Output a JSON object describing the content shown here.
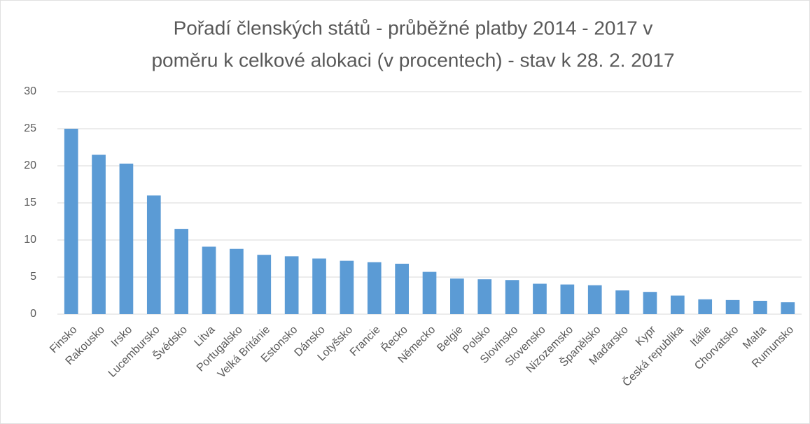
{
  "chart_data": {
    "type": "bar",
    "title": [
      "Pořadí členských států - průběžné platby 2014 - 2017 v",
      "poměru k celkové alokaci (v procentech) - stav k 28. 2. 2017"
    ],
    "categories": [
      "Finsko",
      "Rakousko",
      "Irsko",
      "Lucembursko",
      "Švédsko",
      "Litva",
      "Portugalsko",
      "Velká Británie",
      "Estonsko",
      "Dánsko",
      "Lotyšsko",
      "Francie",
      "Řecko",
      "Německo",
      "Belgie",
      "Polsko",
      "Slovinsko",
      "Slovensko",
      "Nizozemsko",
      "Španělsko",
      "Maďarsko",
      "Kypr",
      "Česká republika",
      "Itálie",
      "Chorvatsko",
      "Malta",
      "Rumunsko"
    ],
    "values": [
      25,
      21.5,
      20.3,
      16,
      11.5,
      9.1,
      8.8,
      8.0,
      7.8,
      7.5,
      7.2,
      7.0,
      6.8,
      5.7,
      4.8,
      4.7,
      4.6,
      4.1,
      4.0,
      3.9,
      3.2,
      3.0,
      2.5,
      2.0,
      1.9,
      1.8,
      1.6
    ],
    "color": "#5b9bd5",
    "ylim": [
      0,
      30
    ],
    "yticks": [
      0,
      5,
      10,
      15,
      20,
      25,
      30
    ],
    "grid": true
  }
}
